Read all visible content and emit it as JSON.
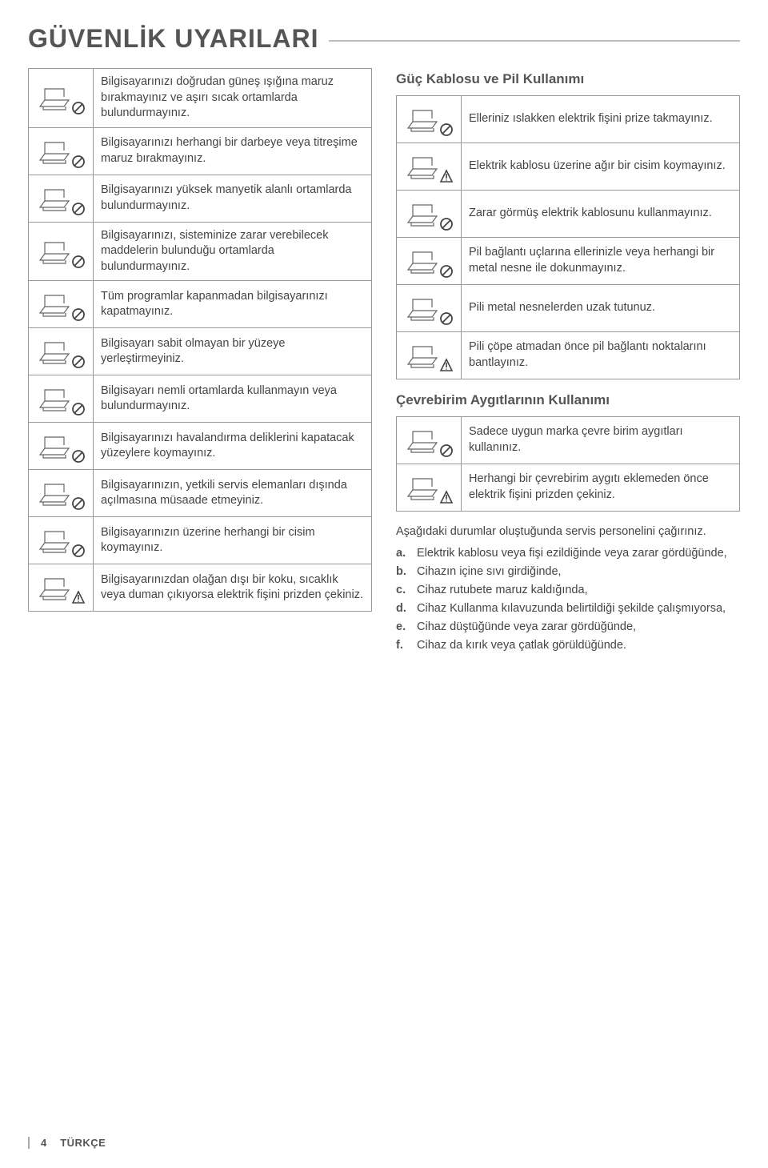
{
  "page_title": "GÜVENLİK UYARILARI",
  "left_items": [
    "Bilgisayarınızı doğrudan güneş ışığına maruz bırakmayınız ve aşırı sıcak ortamlarda bulundurmayınız.",
    "Bilgisayarınızı herhangi bir darbeye veya titreşime maruz bırakmayınız.",
    "Bilgisayarınızı yüksek manyetik alanlı ortamlarda bulundurmayınız.",
    "Bilgisayarınızı, sisteminize zarar verebilecek maddelerin bulunduğu ortamlarda bulundurmayınız.",
    "Tüm programlar kapanmadan bilgisayarınızı kapatmayınız.",
    "Bilgisayarı sabit olmayan bir yüzeye yerleştirmeyiniz.",
    "Bilgisayarı nemli ortamlarda kullanmayın veya bulundurmayınız.",
    "Bilgisayarınızı havalandırma deliklerini kapatacak yüzeylere koymayınız.",
    "Bilgisayarınızın, yetkili servis elemanları dışında açılmasına müsaade etmeyiniz.",
    "Bilgisayarınızın üzerine herhangi bir cisim koymayınız.",
    "Bilgisayarınızdan olağan dışı bir koku, sıcaklık veya duman çıkıyorsa elektrik fişini prizden çekiniz."
  ],
  "right_section1_title": "Güç Kablosu ve Pil Kullanımı",
  "right1_items": [
    "Elleriniz ıslakken elektrik fişini prize takmayınız.",
    "Elektrik kablosu üzerine ağır bir cisim koymayınız.",
    "Zarar görmüş elektrik kablosunu kullanmayınız.",
    "Pil bağlantı uçlarına ellerinizle veya herhangi bir metal nesne ile dokunmayınız.",
    "Pili metal nesnelerden uzak tutunuz.",
    "Pili çöpe atmadan önce pil bağlantı noktalarını bantlayınız."
  ],
  "right_section2_title": "Çevrebirim Aygıtlarının Kullanımı",
  "right2_items": [
    "Sadece uygun marka çevre birim aygıtları kullanınız.",
    "Herhangi bir çevrebirim aygıtı eklemeden önce elektrik fişini prizden çekiniz."
  ],
  "paragraph": "Aşağıdaki durumlar oluştuğunda servis personelini çağırınız.",
  "list_items": [
    {
      "l": "a.",
      "t": "Elektrik kablosu veya fişi ezildiğinde veya zarar gördüğünde,"
    },
    {
      "l": "b.",
      "t": "Cihazın içine sıvı girdiğinde,"
    },
    {
      "l": "c.",
      "t": "Cihaz rutubete maruz kaldığında,"
    },
    {
      "l": "d.",
      "t": "Cihaz Kullanma kılavuzunda belirtildiği şekilde çalışmıyorsa,"
    },
    {
      "l": "e.",
      "t": "Cihaz düştüğünde veya zarar gördüğünde,"
    },
    {
      "l": "f.",
      "t": "Cihaz da kırık veya çatlak görüldüğünde."
    }
  ],
  "footer_page": "4",
  "footer_lang": "TÜRKÇE",
  "icon_symbols": {
    "prohibit": "prohibit",
    "warning": "warning"
  }
}
